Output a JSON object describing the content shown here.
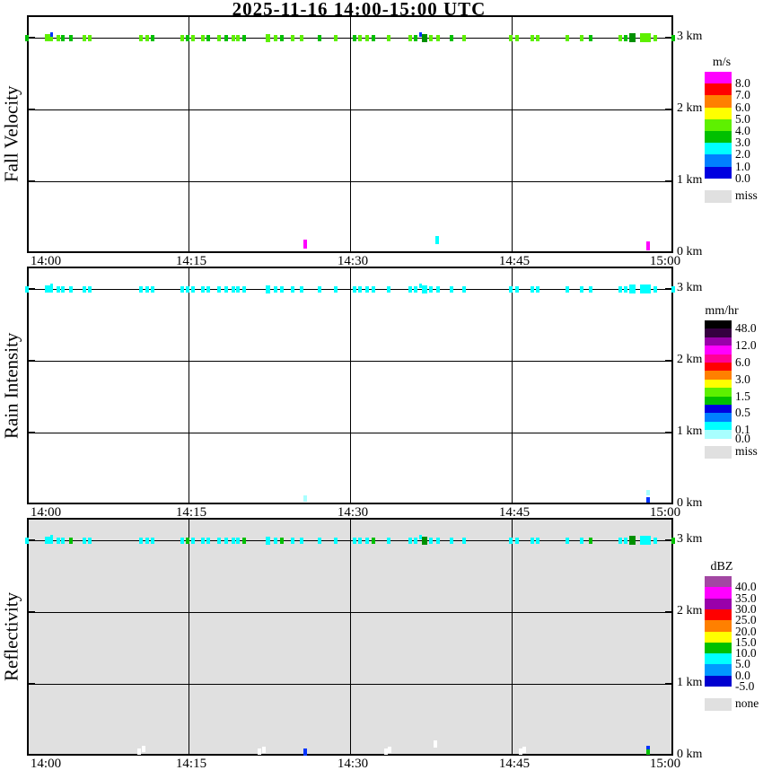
{
  "title": "2025-11-16  14:00-15:00 UTC",
  "palette": {
    "lime": "#5ef000",
    "green": "#00c000",
    "dkgreen": "#009000",
    "blue": "#0033ff",
    "cyan": "#00ffff",
    "palecyan": "#a8ffff",
    "magenta": "#ff00ff",
    "white": "#ffffff",
    "grid": "#000000",
    "miss_gray": "#e0e0e0"
  },
  "axes": {
    "x_tick_labels": [
      "14:00",
      "14:15",
      "14:30",
      "14:45",
      "15:00"
    ],
    "km_labels": [
      "0 km",
      "1 km",
      "2 km",
      "3 km"
    ]
  },
  "panels": [
    {
      "label": "Fall Velocity",
      "bg": "#ffffff"
    },
    {
      "label": "Rain Intensity",
      "bg": "#ffffff"
    },
    {
      "label": "Reflectivity",
      "bg": "#e0e0e0"
    }
  ],
  "legends": [
    {
      "unit": "m/s",
      "blocks": [
        {
          "c": "#ff00ff",
          "l": "8.0"
        },
        {
          "c": "#ff0000",
          "l": "7.0"
        },
        {
          "c": "#ff8000",
          "l": "6.0"
        },
        {
          "c": "#ffff00",
          "l": "5.0"
        },
        {
          "c": "#5ef000",
          "l": "4.0"
        },
        {
          "c": "#00c000",
          "l": "3.0"
        },
        {
          "c": "#00ffff",
          "l": "2.0"
        },
        {
          "c": "#0080ff",
          "l": "1.0"
        },
        {
          "c": "#0000e0",
          "l": "0.0"
        }
      ],
      "miss_label": "miss",
      "miss_color": "#e0e0e0"
    },
    {
      "unit": "mm/hr",
      "blocks": [
        {
          "c": "#000000",
          "l": "48.0"
        },
        {
          "c": "#350040",
          "l": ""
        },
        {
          "c": "#9900aa",
          "l": "12.0"
        },
        {
          "c": "#ff00ff",
          "l": ""
        },
        {
          "c": "#ff0096",
          "l": "6.0"
        },
        {
          "c": "#ff0000",
          "l": ""
        },
        {
          "c": "#ff8000",
          "l": "3.0"
        },
        {
          "c": "#ffff00",
          "l": ""
        },
        {
          "c": "#5ef000",
          "l": "1.5"
        },
        {
          "c": "#00c000",
          "l": ""
        },
        {
          "c": "#0000e0",
          "l": "0.5"
        },
        {
          "c": "#0080ff",
          "l": ""
        },
        {
          "c": "#00ffff",
          "l": "0.1"
        },
        {
          "c": "#a8ffff",
          "l": "0.0"
        }
      ],
      "miss_label": "miss",
      "miss_color": "#e0e0e0"
    },
    {
      "unit": "dBZ",
      "blocks": [
        {
          "c": "#a347a3",
          "l": "40.0"
        },
        {
          "c": "#ff00ff",
          "l": "35.0"
        },
        {
          "c": "#9900aa",
          "l": "30.0"
        },
        {
          "c": "#ff0000",
          "l": "25.0"
        },
        {
          "c": "#ff8000",
          "l": "20.0"
        },
        {
          "c": "#ffff00",
          "l": "15.0"
        },
        {
          "c": "#00c000",
          "l": "10.0"
        },
        {
          "c": "#00ffff",
          "l": "5.0"
        },
        {
          "c": "#0099ff",
          "l": "0.0"
        },
        {
          "c": "#0000d0",
          "l": "-5.0"
        }
      ],
      "miss_label": "none",
      "miss_color": "#e0e0e0"
    }
  ],
  "chart_data": [
    {
      "type": "scatter",
      "name": "Fall Velocity",
      "unit": "m/s",
      "x_axis": "time (UTC)",
      "x_range": [
        "14:00",
        "15:00"
      ],
      "y_axis": "height",
      "y_range_km": [
        0,
        3.3
      ],
      "echo_band_km": 3.0,
      "points_3km": [
        [
          0.0,
          "green"
        ],
        [
          2.0,
          "lime",
          9,
          8
        ],
        [
          2.3,
          "blue",
          3,
          5,
          -4
        ],
        [
          2.9,
          "lime"
        ],
        [
          3.3,
          "green"
        ],
        [
          4.1,
          "green"
        ],
        [
          5.3,
          "lime"
        ],
        [
          5.8,
          "lime"
        ],
        [
          10.6,
          "lime"
        ],
        [
          11.2,
          "lime"
        ],
        [
          11.7,
          "green"
        ],
        [
          14.4,
          "lime"
        ],
        [
          14.9,
          "green"
        ],
        [
          15.4,
          "lime"
        ],
        [
          16.3,
          "lime"
        ],
        [
          16.8,
          "green"
        ],
        [
          17.8,
          "lime"
        ],
        [
          18.5,
          "green"
        ],
        [
          19.2,
          "lime"
        ],
        [
          19.6,
          "lime"
        ],
        [
          20.2,
          "green"
        ],
        [
          22.4,
          "lime",
          5,
          9
        ],
        [
          23.1,
          "lime"
        ],
        [
          23.7,
          "green"
        ],
        [
          24.7,
          "lime"
        ],
        [
          25.5,
          "lime"
        ],
        [
          27.2,
          "green"
        ],
        [
          28.7,
          "lime"
        ],
        [
          30.4,
          "green"
        ],
        [
          30.9,
          "lime"
        ],
        [
          31.6,
          "lime"
        ],
        [
          32.2,
          "green"
        ],
        [
          33.6,
          "lime"
        ],
        [
          35.6,
          "lime"
        ],
        [
          36.1,
          "green"
        ],
        [
          36.5,
          "blue",
          3,
          5,
          -4
        ],
        [
          36.9,
          "dkgreen",
          6,
          9
        ],
        [
          37.5,
          "lime"
        ],
        [
          38.2,
          "lime"
        ],
        [
          39.4,
          "green"
        ],
        [
          40.6,
          "lime"
        ],
        [
          44.9,
          "lime"
        ],
        [
          45.5,
          "lime"
        ],
        [
          46.9,
          "lime"
        ],
        [
          47.4,
          "lime"
        ],
        [
          50.2,
          "lime"
        ],
        [
          51.5,
          "lime"
        ],
        [
          52.3,
          "green"
        ],
        [
          55.1,
          "lime"
        ],
        [
          55.6,
          "green"
        ],
        [
          56.2,
          "dkgreen",
          7,
          10
        ],
        [
          57.4,
          "lime",
          12,
          10
        ],
        [
          58.3,
          "lime"
        ],
        [
          60.0,
          "green"
        ]
      ],
      "points_low": [
        [
          25.8,
          0.12,
          "magenta",
          10
        ],
        [
          38.1,
          0.18,
          "cyan",
          9
        ],
        [
          57.7,
          0.1,
          "magenta",
          10
        ]
      ]
    },
    {
      "type": "scatter",
      "name": "Rain Intensity",
      "unit": "mm/hr",
      "x_axis": "time (UTC)",
      "x_range": [
        "14:00",
        "15:00"
      ],
      "y_axis": "height",
      "y_range_km": [
        0,
        3.3
      ],
      "echo_band_km": 3.0,
      "points_3km": [
        [
          0.0,
          "cyan"
        ],
        [
          2.0,
          "cyan",
          9,
          8
        ],
        [
          2.3,
          "cyan",
          3,
          5,
          -4
        ],
        [
          2.9,
          "cyan"
        ],
        [
          3.3,
          "cyan"
        ],
        [
          4.1,
          "cyan"
        ],
        [
          5.3,
          "cyan"
        ],
        [
          5.8,
          "cyan"
        ],
        [
          10.6,
          "cyan"
        ],
        [
          11.2,
          "cyan"
        ],
        [
          11.7,
          "cyan"
        ],
        [
          14.4,
          "cyan"
        ],
        [
          14.9,
          "cyan"
        ],
        [
          15.4,
          "cyan"
        ],
        [
          16.3,
          "cyan"
        ],
        [
          16.8,
          "cyan"
        ],
        [
          17.8,
          "cyan"
        ],
        [
          18.5,
          "cyan"
        ],
        [
          19.2,
          "cyan"
        ],
        [
          19.6,
          "cyan"
        ],
        [
          20.2,
          "cyan"
        ],
        [
          22.4,
          "cyan",
          5,
          9
        ],
        [
          23.1,
          "cyan"
        ],
        [
          23.7,
          "cyan"
        ],
        [
          24.7,
          "cyan"
        ],
        [
          25.5,
          "cyan"
        ],
        [
          27.2,
          "cyan"
        ],
        [
          28.7,
          "cyan"
        ],
        [
          30.4,
          "cyan"
        ],
        [
          30.9,
          "cyan"
        ],
        [
          31.6,
          "cyan"
        ],
        [
          32.2,
          "cyan"
        ],
        [
          33.6,
          "cyan"
        ],
        [
          35.6,
          "cyan"
        ],
        [
          36.1,
          "cyan"
        ],
        [
          36.5,
          "cyan",
          3,
          5,
          -4
        ],
        [
          36.9,
          "cyan",
          6,
          9
        ],
        [
          37.5,
          "cyan"
        ],
        [
          38.2,
          "cyan"
        ],
        [
          39.4,
          "cyan"
        ],
        [
          40.6,
          "cyan"
        ],
        [
          44.9,
          "cyan"
        ],
        [
          45.5,
          "cyan"
        ],
        [
          46.9,
          "cyan"
        ],
        [
          47.4,
          "cyan"
        ],
        [
          50.2,
          "cyan"
        ],
        [
          51.5,
          "cyan"
        ],
        [
          52.3,
          "cyan"
        ],
        [
          55.1,
          "cyan"
        ],
        [
          55.6,
          "cyan"
        ],
        [
          56.2,
          "cyan",
          7,
          10
        ],
        [
          57.4,
          "cyan",
          12,
          10
        ],
        [
          58.3,
          "cyan"
        ],
        [
          60.0,
          "cyan"
        ]
      ],
      "points_low": [
        [
          25.8,
          0.08,
          "palecyan",
          7
        ],
        [
          57.7,
          0.16,
          "palecyan",
          6
        ],
        [
          57.7,
          0.06,
          "blue",
          6
        ]
      ]
    },
    {
      "type": "scatter",
      "name": "Reflectivity",
      "unit": "dBZ",
      "x_axis": "time (UTC)",
      "x_range": [
        "14:00",
        "15:00"
      ],
      "y_axis": "height",
      "y_range_km": [
        0,
        3.3
      ],
      "echo_band_km": 3.0,
      "points_3km": [
        [
          0.0,
          "cyan"
        ],
        [
          2.0,
          "cyan",
          9,
          8
        ],
        [
          2.3,
          "cyan",
          3,
          5,
          -4
        ],
        [
          2.9,
          "cyan"
        ],
        [
          3.3,
          "cyan"
        ],
        [
          4.1,
          "green"
        ],
        [
          5.3,
          "cyan"
        ],
        [
          5.8,
          "cyan"
        ],
        [
          10.6,
          "cyan"
        ],
        [
          11.2,
          "cyan"
        ],
        [
          11.7,
          "cyan"
        ],
        [
          14.4,
          "cyan"
        ],
        [
          14.9,
          "green"
        ],
        [
          15.4,
          "cyan"
        ],
        [
          16.3,
          "cyan"
        ],
        [
          16.8,
          "cyan"
        ],
        [
          17.8,
          "cyan"
        ],
        [
          18.5,
          "cyan"
        ],
        [
          19.2,
          "cyan"
        ],
        [
          19.6,
          "cyan"
        ],
        [
          20.2,
          "green"
        ],
        [
          22.4,
          "cyan",
          5,
          9
        ],
        [
          23.1,
          "cyan"
        ],
        [
          23.7,
          "green"
        ],
        [
          24.7,
          "cyan"
        ],
        [
          25.5,
          "cyan"
        ],
        [
          27.2,
          "cyan"
        ],
        [
          28.7,
          "cyan"
        ],
        [
          30.4,
          "cyan"
        ],
        [
          30.9,
          "cyan"
        ],
        [
          31.6,
          "cyan"
        ],
        [
          32.2,
          "green"
        ],
        [
          33.6,
          "cyan"
        ],
        [
          35.6,
          "cyan"
        ],
        [
          36.1,
          "cyan"
        ],
        [
          36.5,
          "cyan",
          3,
          5,
          -4
        ],
        [
          36.9,
          "dkgreen",
          6,
          9
        ],
        [
          37.5,
          "cyan"
        ],
        [
          38.2,
          "cyan"
        ],
        [
          39.4,
          "cyan"
        ],
        [
          40.6,
          "cyan"
        ],
        [
          44.9,
          "cyan"
        ],
        [
          45.5,
          "cyan"
        ],
        [
          46.9,
          "cyan"
        ],
        [
          47.4,
          "cyan"
        ],
        [
          50.2,
          "cyan"
        ],
        [
          51.5,
          "cyan"
        ],
        [
          52.3,
          "green"
        ],
        [
          55.1,
          "cyan"
        ],
        [
          55.6,
          "cyan"
        ],
        [
          56.2,
          "dkgreen",
          7,
          10
        ],
        [
          57.4,
          "cyan",
          12,
          10
        ],
        [
          58.3,
          "cyan"
        ],
        [
          60.0,
          "green"
        ]
      ],
      "points_low": [
        [
          10.4,
          0.06,
          "white",
          7
        ],
        [
          10.8,
          0.09,
          "white",
          7
        ],
        [
          21.6,
          0.06,
          "white",
          7
        ],
        [
          22.0,
          0.08,
          "white",
          7
        ],
        [
          25.8,
          0.05,
          "blue",
          8
        ],
        [
          33.3,
          0.06,
          "white",
          7
        ],
        [
          33.7,
          0.08,
          "white",
          7
        ],
        [
          37.9,
          0.16,
          "white",
          8
        ],
        [
          45.8,
          0.06,
          "white",
          7
        ],
        [
          46.2,
          0.08,
          "white",
          7
        ],
        [
          57.7,
          0.11,
          "blue",
          5
        ],
        [
          57.7,
          0.05,
          "green",
          6
        ]
      ]
    }
  ]
}
